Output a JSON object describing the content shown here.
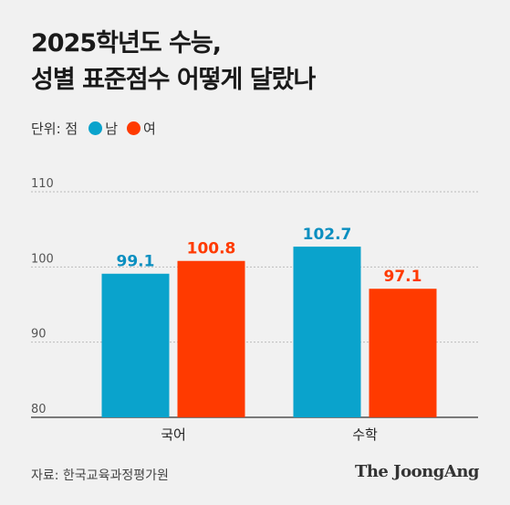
{
  "title": {
    "line1": "2025학년도 수능,",
    "line2": "성별 표준점수 어떻게 달랐나"
  },
  "legend": {
    "unit": "단위: 점",
    "items": [
      {
        "label": "남",
        "color": "#0aa3cc"
      },
      {
        "label": "여",
        "color": "#ff3a00"
      }
    ]
  },
  "chart_data": {
    "type": "bar",
    "categories": [
      "국어",
      "수학"
    ],
    "series": [
      {
        "name": "남",
        "values": [
          99.1,
          102.7
        ],
        "labels": [
          "99.1",
          "102.7"
        ],
        "color": "#0aa3cc",
        "label_color": "#0a8fc0"
      },
      {
        "name": "여",
        "values": [
          100.8,
          97.1
        ],
        "labels": [
          "100.8",
          "97.1"
        ],
        "color": "#ff3a00",
        "label_color": "#ff3a00"
      }
    ],
    "ylim": [
      80,
      110
    ],
    "yticks": [
      80,
      90,
      100,
      110
    ],
    "ytick_labels": [
      "80",
      "90",
      "100",
      "110"
    ],
    "grid": true
  },
  "source": "자료: 한국교육과정평가원",
  "brand": "The JoongAng"
}
